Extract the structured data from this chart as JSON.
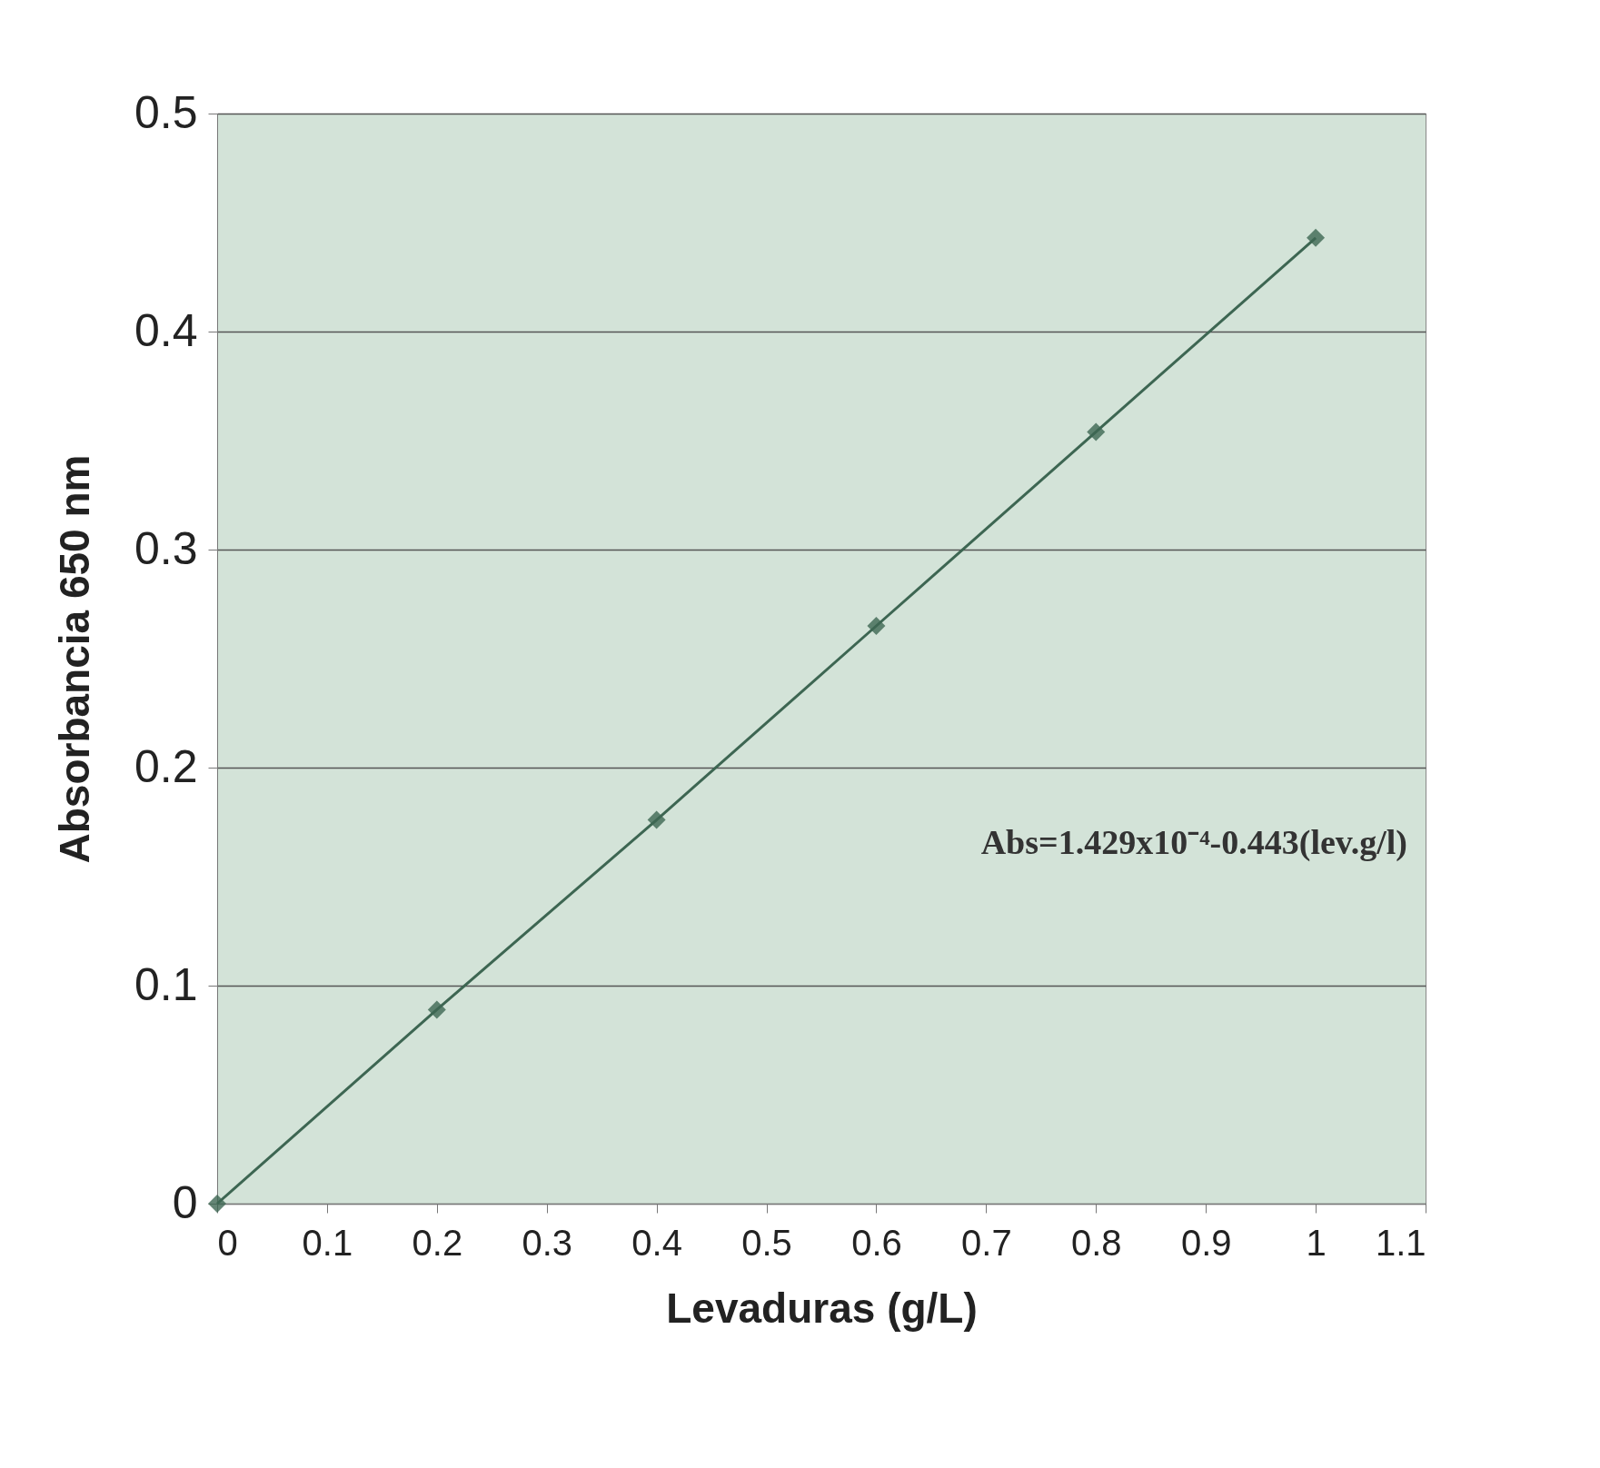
{
  "chart_data": {
    "type": "line",
    "xlabel": "Levaduras (g/L)",
    "ylabel": "Absorbancia 650 nm",
    "x": [
      0,
      0.2,
      0.4,
      0.6,
      0.8,
      1.0
    ],
    "series": [
      {
        "color": "#3d6652",
        "values": [
          0,
          0.089,
          0.176,
          0.265,
          0.354,
          0.443
        ]
      }
    ],
    "xlim": [
      0,
      1.1
    ],
    "xticks": [
      0,
      0.1,
      0.2,
      0.3,
      0.4,
      0.5,
      0.6,
      0.7,
      0.8,
      0.9,
      1,
      1.1
    ],
    "ylim": [
      0,
      0.5
    ],
    "yticks": [
      0,
      0.1,
      0.2,
      0.3,
      0.4,
      0.5
    ],
    "grid": "y",
    "marker": "diamond",
    "line_style": "solid",
    "annotations": [
      "Abs=1.429x10⁻⁴-0.443(lev.g/l)"
    ]
  }
}
